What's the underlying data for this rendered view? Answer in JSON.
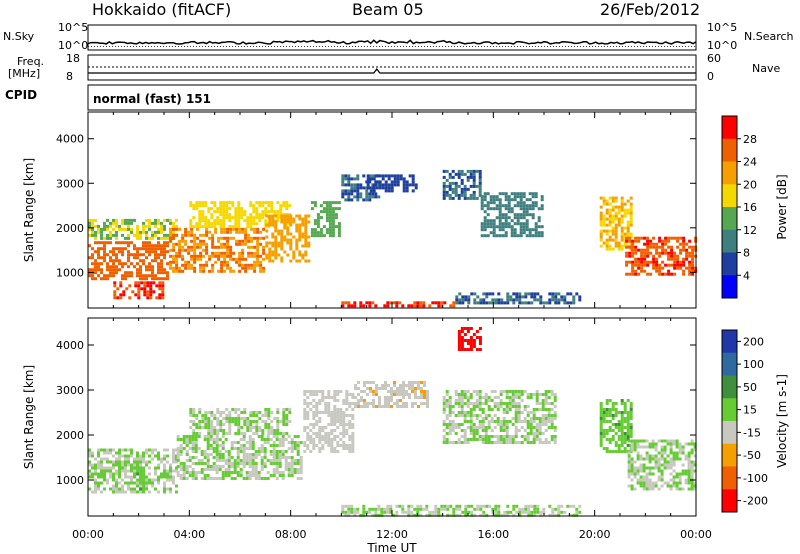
{
  "header": {
    "radar": "Hokkaido (fitACF)",
    "beam": "Beam 05",
    "date": "26/Feb/2012"
  },
  "strip": {
    "nsky_label": "N.Sky",
    "nsearch_label": "N.Search",
    "nsky_ticks": [
      "10^5",
      "10^0"
    ],
    "nsearch_ticks": [
      "10^5",
      "10^0"
    ],
    "freq_label": "Freq.",
    "freq_unit": "[MHz]",
    "freq_ticks": [
      "18",
      "8"
    ],
    "nave_label": "Nave",
    "nave_ticks": [
      "60",
      "0"
    ],
    "cpid_label": "CPID",
    "cpid_value": "normal (fast) 151"
  },
  "chart_data": [
    {
      "type": "heatmap",
      "panel": "power",
      "ylabel": "Slant Range [km]",
      "xlabel": "",
      "yticks": [
        1000,
        2000,
        3000,
        4000
      ],
      "ylim": [
        200,
        4600
      ],
      "xlim": [
        0,
        24
      ],
      "colorbar": {
        "label": "Power [dB]",
        "ticks": [
          4,
          8,
          12,
          16,
          20,
          24,
          28
        ],
        "colors": [
          "#0000ff",
          "#1e3fa0",
          "#3f7f7f",
          "#55a851",
          "#f5d800",
          "#f59f00",
          "#f06000",
          "#ff0000"
        ],
        "range": [
          0,
          32
        ]
      },
      "regions": [
        {
          "t0": 0.0,
          "t1": 3.2,
          "r0": 800,
          "r1": 1700,
          "value": 26
        },
        {
          "t0": 1.0,
          "t1": 3.0,
          "r0": 400,
          "r1": 800,
          "value": 28
        },
        {
          "t0": 0.0,
          "t1": 3.5,
          "r0": 1700,
          "r1": 2200,
          "value": 16
        },
        {
          "t0": 3.2,
          "t1": 7.0,
          "r0": 1000,
          "r1": 2000,
          "value": 24
        },
        {
          "t0": 4.0,
          "t1": 8.0,
          "r0": 2000,
          "r1": 2600,
          "value": 18
        },
        {
          "t0": 7.0,
          "t1": 8.8,
          "r0": 1200,
          "r1": 2300,
          "value": 22
        },
        {
          "t0": 8.8,
          "t1": 10.0,
          "r0": 1800,
          "r1": 2600,
          "value": 14
        },
        {
          "t0": 10.0,
          "t1": 11.5,
          "r0": 2600,
          "r1": 3200,
          "value": 8
        },
        {
          "t0": 11.0,
          "t1": 13.0,
          "r0": 2800,
          "r1": 3200,
          "value": 6
        },
        {
          "t0": 14.0,
          "t1": 15.5,
          "r0": 2600,
          "r1": 3300,
          "value": 8
        },
        {
          "t0": 15.5,
          "t1": 18.0,
          "r0": 1800,
          "r1": 2800,
          "value": 10
        },
        {
          "t0": 20.2,
          "t1": 21.5,
          "r0": 1500,
          "r1": 2700,
          "value": 20
        },
        {
          "t0": 21.2,
          "t1": 24.0,
          "r0": 900,
          "r1": 1800,
          "value": 27
        },
        {
          "t0": 10.0,
          "t1": 14.5,
          "r0": 200,
          "r1": 350,
          "value": 28
        },
        {
          "t0": 14.5,
          "t1": 19.5,
          "r0": 250,
          "r1": 550,
          "value": 8
        }
      ]
    },
    {
      "type": "heatmap",
      "panel": "velocity",
      "ylabel": "Slant Range [km]",
      "xlabel": "Time UT",
      "xticks": [
        "00:00",
        "04:00",
        "08:00",
        "12:00",
        "16:00",
        "20:00",
        "00:00"
      ],
      "yticks": [
        1000,
        2000,
        3000,
        4000
      ],
      "ylim": [
        200,
        4600
      ],
      "xlim": [
        0,
        24
      ],
      "colorbar": {
        "label": "Velocity [m s-1]",
        "ticks": [
          200,
          100,
          50,
          15,
          -15,
          -50,
          -100,
          -200
        ],
        "colors": [
          "#1f37a8",
          "#2e6aa0",
          "#3f8f3f",
          "#66cc33",
          "#c8c8c0",
          "#f5a000",
          "#f06000",
          "#ff0000"
        ],
        "range": [
          -250,
          250
        ]
      },
      "regions": [
        {
          "t0": 0.0,
          "t1": 3.5,
          "r0": 700,
          "r1": 1700,
          "value": 0
        },
        {
          "t0": 3.5,
          "t1": 8.5,
          "r0": 1000,
          "r1": 2000,
          "value": 0
        },
        {
          "t0": 4.0,
          "t1": 8.0,
          "r0": 2000,
          "r1": 2600,
          "value": 0
        },
        {
          "t0": 8.5,
          "t1": 10.5,
          "r0": 1600,
          "r1": 3000,
          "value": -30
        },
        {
          "t0": 1.9,
          "t1": 2.2,
          "r0": 800,
          "r1": 1300,
          "value": 40
        },
        {
          "t0": 10.5,
          "t1": 13.5,
          "r0": 2600,
          "r1": 3200,
          "value": -40
        },
        {
          "t0": 14.0,
          "t1": 18.5,
          "r0": 1800,
          "r1": 3000,
          "value": 0
        },
        {
          "t0": 14.6,
          "t1": 15.5,
          "r0": 3900,
          "r1": 4400,
          "value": -220
        },
        {
          "t0": 20.2,
          "t1": 21.5,
          "r0": 1600,
          "r1": 2800,
          "value": 40
        },
        {
          "t0": 21.3,
          "t1": 24.0,
          "r0": 800,
          "r1": 1900,
          "value": 0
        },
        {
          "t0": 10.0,
          "t1": 19.5,
          "r0": 200,
          "r1": 450,
          "value": 0
        }
      ]
    }
  ]
}
